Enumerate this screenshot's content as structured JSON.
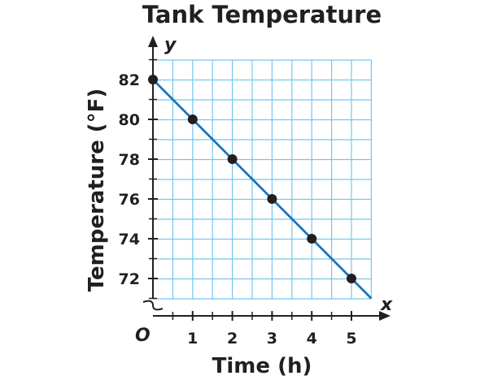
{
  "chart_data": {
    "type": "line",
    "title": "Tank Temperature",
    "xlabel": "Time (h)",
    "ylabel": "Temperature (°F)",
    "x_var": "x",
    "y_var": "y",
    "origin_label": "O",
    "x_ticks": [
      "1",
      "2",
      "3",
      "4",
      "5"
    ],
    "y_ticks": [
      "72",
      "74",
      "76",
      "78",
      "80",
      "82"
    ],
    "series": [
      {
        "x": [
          0,
          1,
          2,
          3,
          4,
          5
        ],
        "y": [
          82,
          80,
          78,
          76,
          74,
          72
        ]
      }
    ],
    "line_extends_to": {
      "x": 5.5,
      "y": 71
    },
    "xlim": [
      0,
      5.5
    ],
    "ylim": [
      71,
      83
    ],
    "grid": true,
    "y_axis_break": true,
    "colors": {
      "line": "#1b75bb",
      "grid": "#74c6f0",
      "point": "#231f20",
      "axis": "#231f20"
    }
  }
}
